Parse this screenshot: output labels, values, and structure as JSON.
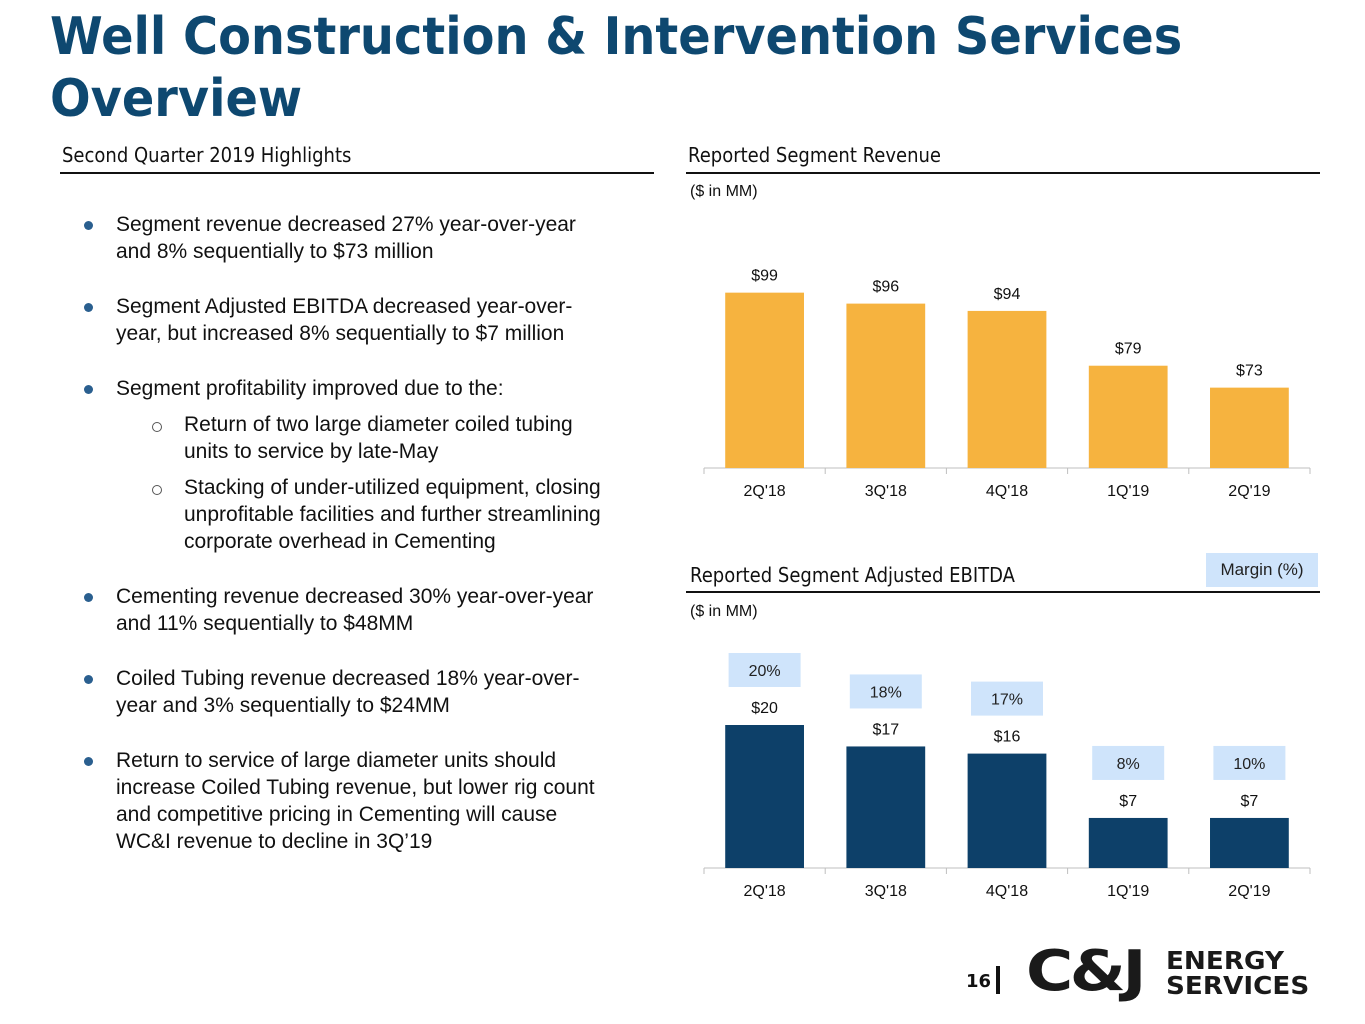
{
  "page": {
    "title_line1": "Well Construction & Intervention Services",
    "title_line2": "Overview",
    "page_number": "16"
  },
  "highlights": {
    "heading": "Second Quarter 2019 Highlights",
    "bullets": [
      {
        "text_lines": [
          "Segment revenue decreased 27% year-over-year",
          "and 8% sequentially to $73 million"
        ]
      },
      {
        "text_lines": [
          "Segment Adjusted EBITDA decreased year-over-",
          "year, but increased 8% sequentially to $7 million"
        ]
      },
      {
        "text_lines": [
          "Segment profitability improved due to the:"
        ],
        "sub_bullets": [
          {
            "text_lines": [
              "Return of two large diameter coiled tubing",
              "units to service by late-May"
            ]
          },
          {
            "text_lines": [
              "Stacking of under-utilized equipment, closing",
              "unprofitable facilities and further streamlining",
              "corporate overhead in Cementing"
            ]
          }
        ]
      },
      {
        "text_lines": [
          "Cementing revenue decreased 30% year-over-year",
          "and 11% sequentially to $48MM"
        ]
      },
      {
        "text_lines": [
          "Coiled Tubing revenue decreased 18% year-over-",
          "year and 3% sequentially to $24MM"
        ]
      },
      {
        "text_lines": [
          "Return to service of large diameter units should",
          "increase Coiled Tubing revenue, but lower rig count",
          "and competitive pricing in Cementing will cause",
          "WC&I revenue to decline in 3Q’19"
        ]
      }
    ]
  },
  "logo": {
    "mark": "C&J",
    "line1": "ENERGY",
    "line2": "SERVICES"
  },
  "chart_data": [
    {
      "type": "bar",
      "title": "Reported Segment Revenue",
      "subtitle": "($ in MM)",
      "categories": [
        "2Q'18",
        "3Q'18",
        "4Q'18",
        "1Q'19",
        "2Q'19"
      ],
      "values": [
        99,
        96,
        94,
        79,
        73
      ],
      "data_labels": [
        "$99",
        "$96",
        "$94",
        "$79",
        "$73"
      ],
      "xlabel": "",
      "ylabel": "",
      "ylim": [
        51,
        100
      ],
      "grid": false,
      "color": "#f6b33f"
    },
    {
      "type": "bar",
      "title": "Reported Segment Adjusted EBITDA",
      "subtitle": "($ in MM)",
      "legend": "Margin (%)",
      "legend_position": "top-right",
      "categories": [
        "2Q'18",
        "3Q'18",
        "4Q'18",
        "1Q'19",
        "2Q'19"
      ],
      "values": [
        20,
        17,
        16,
        7,
        7
      ],
      "data_labels": [
        "$20",
        "$17",
        "$16",
        "$7",
        "$7"
      ],
      "margins": [
        "20%",
        "18%",
        "17%",
        "8%",
        "10%"
      ],
      "xlabel": "",
      "ylabel": "",
      "ylim": [
        0,
        20
      ],
      "grid": false,
      "color": "#0d4069",
      "margin_box_color": "#cfe4fb"
    }
  ]
}
